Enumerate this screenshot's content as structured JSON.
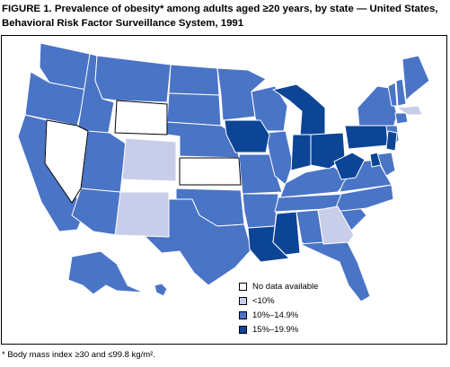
{
  "title": {
    "line1": "FIGURE 1. Prevalence of obesity* among adults aged ≥20 years, by state — United States,",
    "line2": "Behavioral Risk Factor Surveillance System, 1991"
  },
  "colors": {
    "no_data": "#ffffff",
    "lt10": "#c8cdea",
    "r10_14": "#4a74c6",
    "r15_19": "#0d4596",
    "outline": "#ffffff"
  },
  "legend": [
    {
      "label": "No data available",
      "color": "#ffffff"
    },
    {
      "label": "<10%",
      "color": "#c8cdea"
    },
    {
      "label": "10%–14.9%",
      "color": "#4a74c6"
    },
    {
      "label": "15%–19.9%",
      "color": "#0d4596"
    }
  ],
  "footnote": "* Body mass index ≥30 and ≤99.8 kg/m²."
}
